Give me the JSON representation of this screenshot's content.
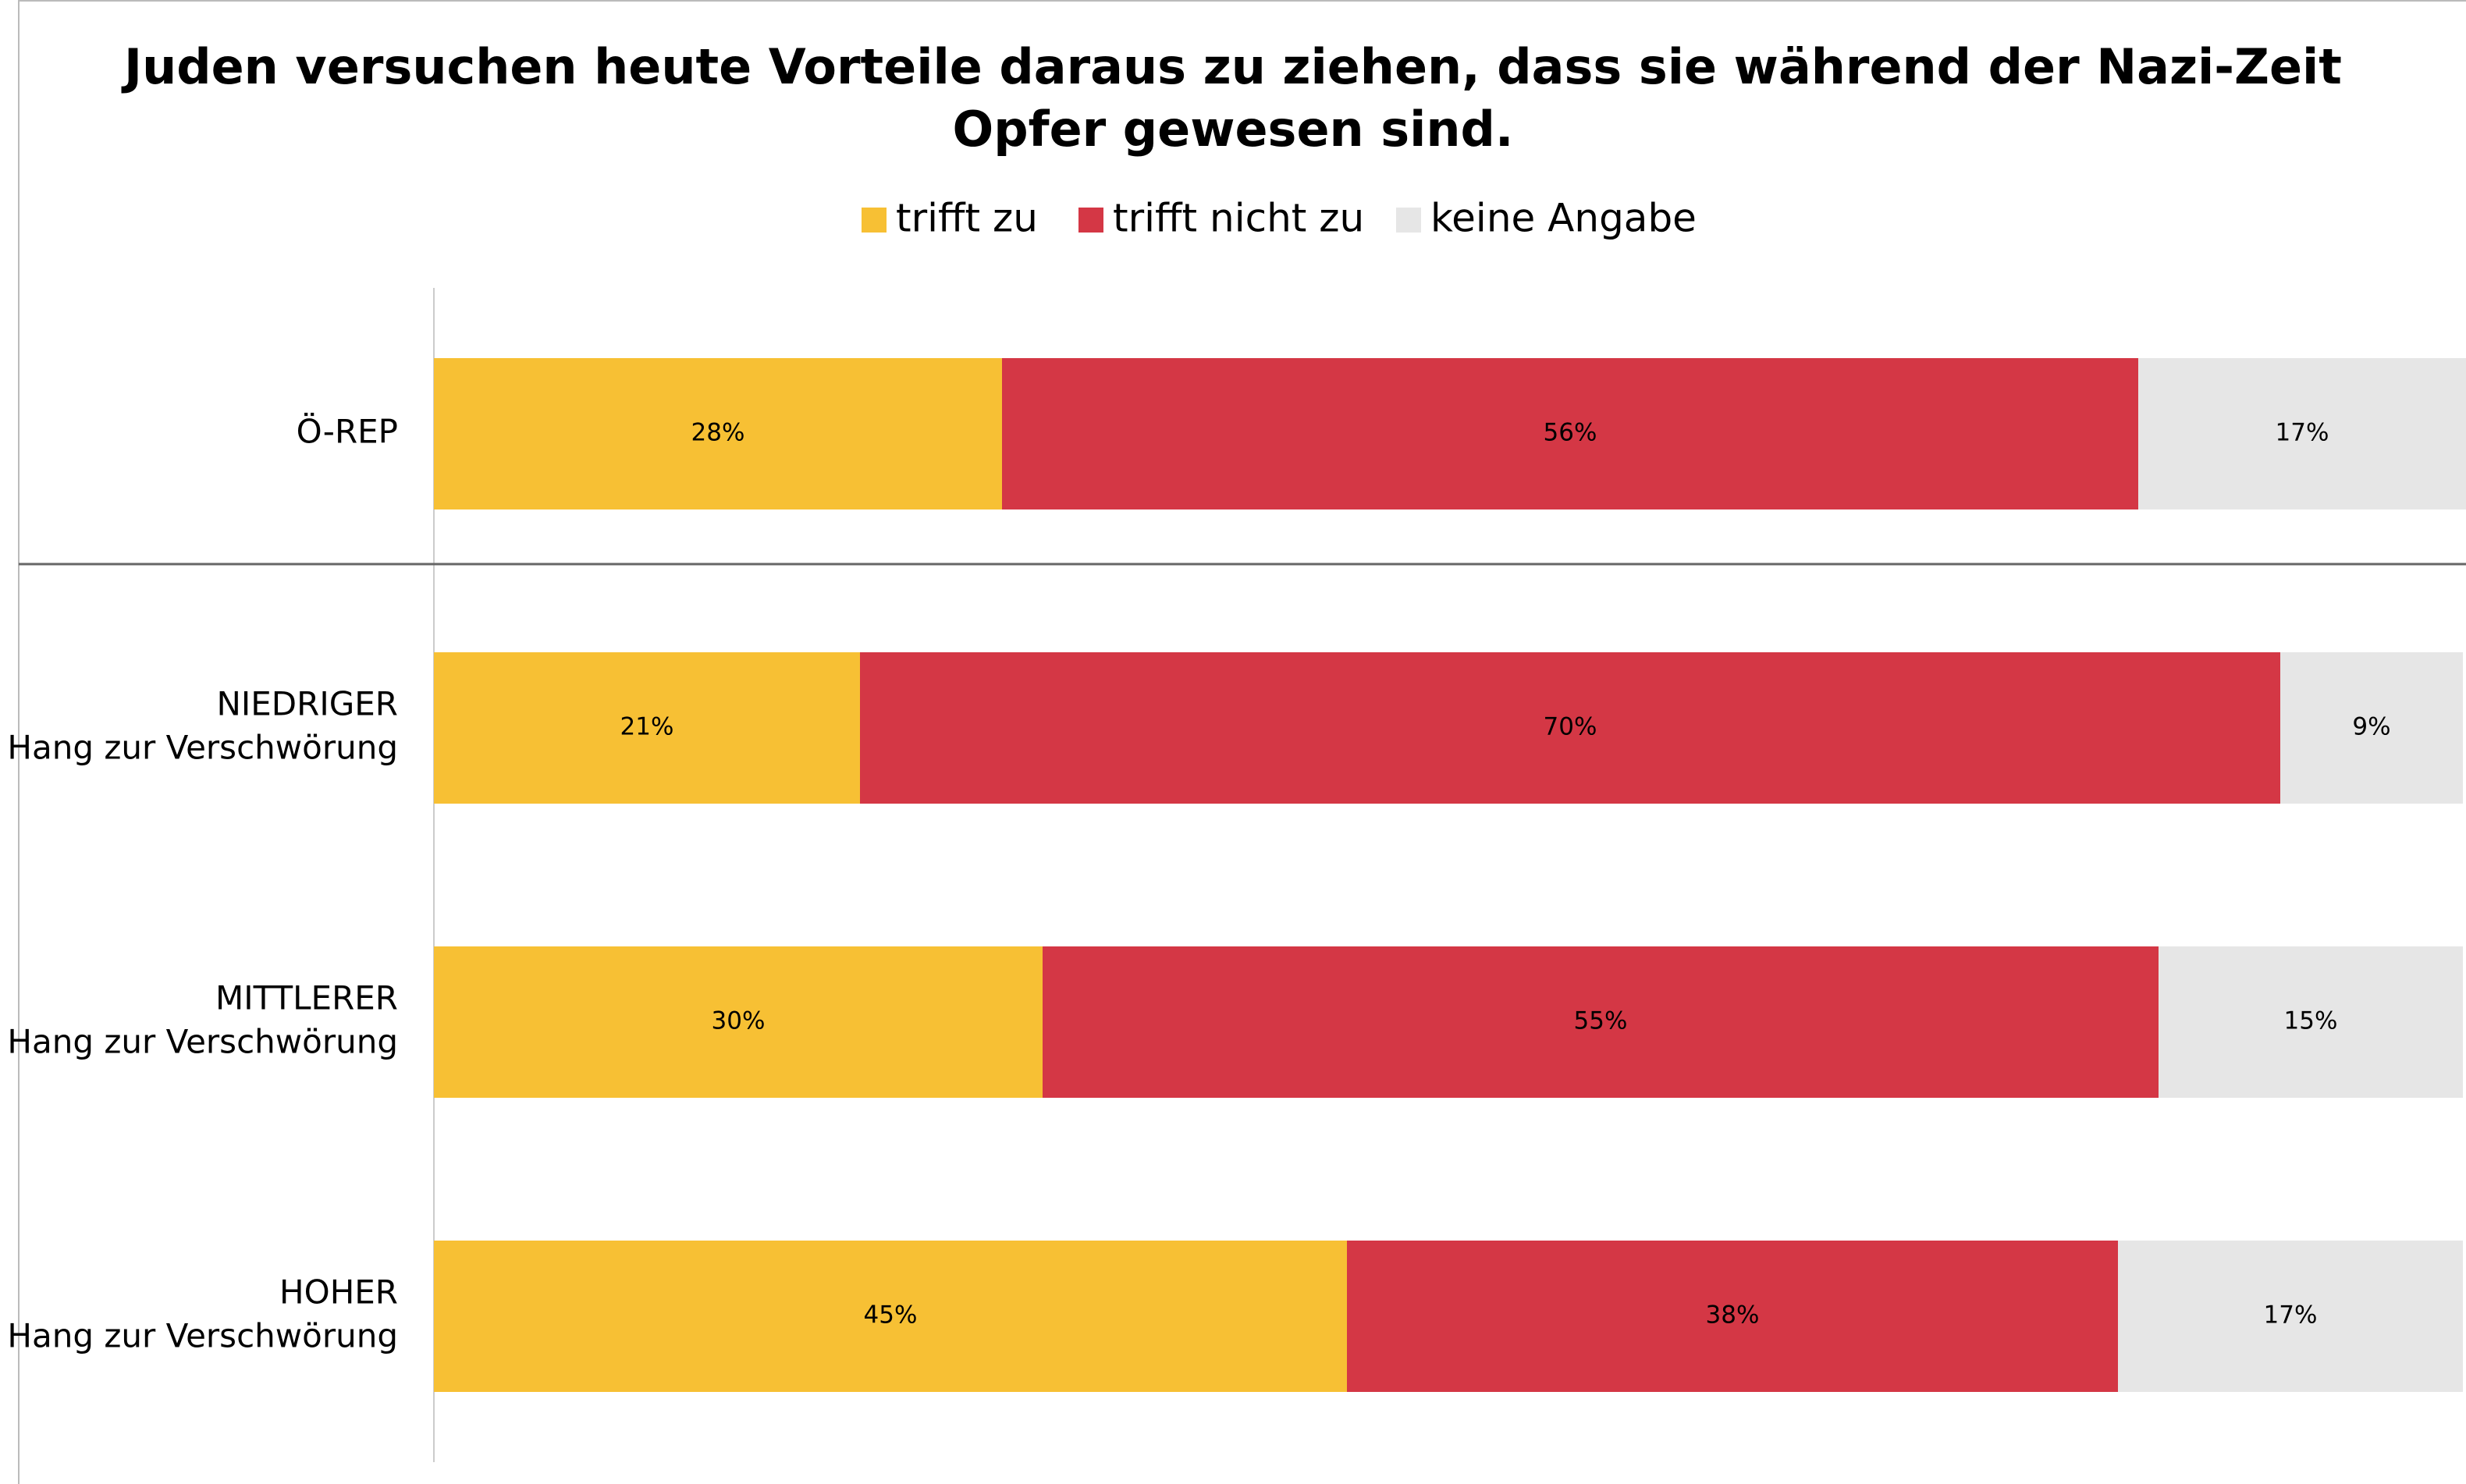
{
  "chart_data": {
    "type": "bar",
    "orientation": "horizontal",
    "stacked": true,
    "title": [
      "Juden versuchen heute Vorteile daraus zu ziehen, dass sie während der Nazi-Zeit",
      "Opfer gewesen sind."
    ],
    "categories": [
      [
        "Ö-REP"
      ],
      [
        "NIEDRIGER",
        "Hang zur Verschwörung"
      ],
      [
        "MITTLERER",
        "Hang zur Verschwörung"
      ],
      [
        "HOHER",
        "Hang zur Verschwörung"
      ]
    ],
    "series": [
      {
        "name": "trifft zu",
        "color": "#f7c034",
        "values": [
          28,
          21,
          30,
          45
        ],
        "value_labels": [
          "28%",
          "21%",
          "30%",
          "45%"
        ]
      },
      {
        "name": "trifft nicht zu",
        "color": "#d43745",
        "values": [
          56,
          70,
          55,
          38
        ],
        "value_labels": [
          "56%",
          "70%",
          "55%",
          "38%"
        ]
      },
      {
        "name": "keine Angabe",
        "color": "#e6e6e6",
        "values": [
          17,
          9,
          15,
          17
        ],
        "value_labels": [
          "17%",
          "9%",
          "15%",
          "17%"
        ]
      }
    ],
    "xlim": [
      0,
      100
    ]
  }
}
